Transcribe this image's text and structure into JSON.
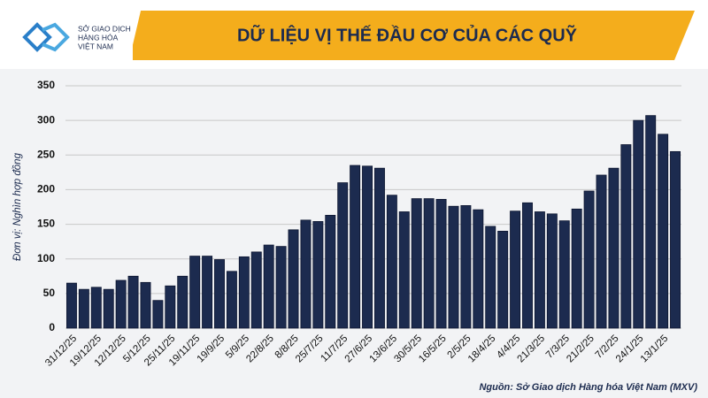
{
  "header": {
    "logo_lines": [
      "SỞ GIAO DỊCH",
      "HÀNG HÓA",
      "VIỆT NAM"
    ]
  },
  "chart_data": {
    "type": "bar",
    "title": "DỮ LIỆU VỊ THẾ ĐẦU CƠ CỦA CÁC QUỸ",
    "y_label": "Đơn vị: Nghìn hợp đồng",
    "source": "Nguồn: Sở Giao dịch Hàng hóa Việt Nam (MXV)",
    "categories": [
      "31/12/25",
      null,
      "19/12/25",
      null,
      "12/12/25",
      null,
      "5/12/25",
      null,
      "25/11/25",
      null,
      "19/11/25",
      null,
      "19/9/25",
      null,
      "5/9/25",
      null,
      "22/8/25",
      null,
      "8/8/25",
      null,
      "25/7/25",
      null,
      "11/7/25",
      null,
      "27/6/25",
      null,
      "13/6/25",
      null,
      "30/5/25",
      null,
      "16/5/25",
      null,
      "2/5/25",
      null,
      "18/4/25",
      null,
      "4/4/25",
      null,
      "21/3/25",
      null,
      "7/3/25",
      null,
      "21/2/25",
      null,
      "7/2/25",
      null,
      "24/1/25",
      null,
      "13/1/25",
      null
    ],
    "values": [
      65,
      56,
      59,
      56,
      69,
      75,
      66,
      40,
      61,
      75,
      104,
      104,
      99,
      82,
      103,
      110,
      120,
      118,
      142,
      156,
      154,
      163,
      210,
      235,
      234,
      231,
      192,
      168,
      187,
      187,
      186,
      176,
      177,
      171,
      147,
      140,
      169,
      181,
      168,
      165,
      155,
      172,
      198,
      221,
      231,
      265,
      300,
      307,
      280,
      255
    ],
    "color": "#1c2b4f",
    "ylim": [
      0,
      350
    ],
    "yticks": [
      0,
      50,
      100,
      150,
      200,
      250,
      300,
      350
    ],
    "grid": true
  }
}
